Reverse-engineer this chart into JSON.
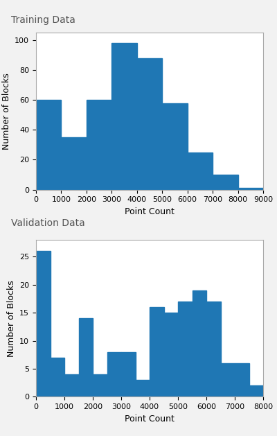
{
  "title1": "Training Data",
  "title2": "Validation Data",
  "xlabel": "Point Count",
  "ylabel": "Number of Blocks",
  "bar_color": "#1f77b4",
  "train_bin_edges": [
    0,
    1000,
    2000,
    3000,
    4000,
    5000,
    6000,
    7000,
    8000,
    9000
  ],
  "train_counts": [
    60,
    35,
    60,
    98,
    88,
    58,
    25,
    10,
    1
  ],
  "val_bin_edges": [
    0,
    500,
    1000,
    1500,
    2000,
    2500,
    3000,
    3500,
    4000,
    4500,
    5000,
    5500,
    6000,
    6500,
    7000,
    7500,
    8000
  ],
  "val_counts": [
    26,
    7,
    4,
    14,
    4,
    8,
    8,
    3,
    16,
    15,
    17,
    19,
    17,
    6,
    6,
    2
  ],
  "train_ylim": [
    0,
    105
  ],
  "val_ylim": [
    0,
    28
  ],
  "bg_color": "#f2f2f2",
  "title_fontsize": 10,
  "label_fontsize": 9,
  "tick_fontsize": 8,
  "axes_bg": "#ffffff",
  "title_color": "#555555"
}
